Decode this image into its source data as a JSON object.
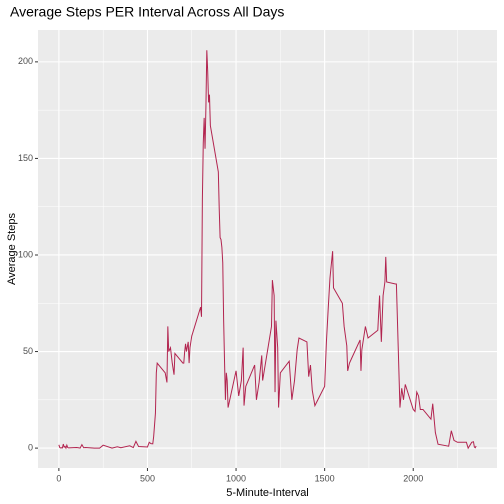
{
  "chart_data": {
    "type": "line",
    "title": "Average Steps PER Interval Across All Days",
    "x_label": "5-Minute-Interval",
    "y_label": "Average Steps",
    "x": [
      0,
      5,
      10,
      15,
      20,
      25,
      30,
      35,
      40,
      45,
      50,
      55,
      100,
      110,
      120,
      130,
      140,
      150,
      200,
      230,
      250,
      300,
      330,
      350,
      400,
      420,
      435,
      440,
      450,
      500,
      510,
      520,
      530,
      535,
      545,
      550,
      555,
      600,
      610,
      615,
      620,
      630,
      640,
      650,
      655,
      700,
      705,
      710,
      715,
      720,
      730,
      735,
      740,
      750,
      800,
      805,
      810,
      815,
      820,
      825,
      830,
      835,
      840,
      845,
      850,
      855,
      900,
      905,
      910,
      915,
      920,
      925,
      930,
      935,
      940,
      945,
      950,
      955,
      1000,
      1015,
      1030,
      1040,
      1045,
      1055,
      1105,
      1115,
      1130,
      1145,
      1150,
      1200,
      1205,
      1215,
      1220,
      1225,
      1235,
      1240,
      1250,
      1300,
      1315,
      1330,
      1345,
      1355,
      1400,
      1410,
      1420,
      1430,
      1445,
      1500,
      1510,
      1520,
      1530,
      1545,
      1550,
      1600,
      1610,
      1625,
      1630,
      1640,
      1650,
      1700,
      1705,
      1710,
      1720,
      1730,
      1745,
      1800,
      1810,
      1820,
      1830,
      1840,
      1845,
      1850,
      1900,
      1905,
      1915,
      1925,
      1935,
      1945,
      1955,
      2000,
      2010,
      2020,
      2030,
      2040,
      2055,
      2100,
      2110,
      2125,
      2140,
      2200,
      2215,
      2230,
      2250,
      2300,
      2310,
      2330,
      2340,
      2345,
      2350,
      2355
    ],
    "series": [
      {
        "name": "Average Steps",
        "color": "#b2244f",
        "values": [
          1.7,
          0.3,
          0.1,
          0.2,
          0.1,
          2.1,
          0.5,
          0.9,
          0,
          1.5,
          0.3,
          0.1,
          0.3,
          0.2,
          0,
          1.8,
          0.2,
          0.3,
          0,
          0,
          1.5,
          0,
          0.7,
          0.2,
          1.2,
          0.3,
          3.5,
          2.6,
          0.8,
          0.6,
          3,
          2.3,
          2.2,
          6,
          18,
          39,
          44,
          39,
          34,
          63,
          50,
          52,
          44,
          38,
          49,
          44,
          44,
          50,
          54,
          50,
          55,
          44,
          52,
          58,
          73,
          68,
          129,
          158,
          171,
          155,
          177,
          206,
          195,
          179,
          183,
          167,
          143,
          124,
          109,
          108,
          104,
          96,
          66,
          45,
          25,
          39,
          35,
          21,
          40,
          27,
          35,
          52,
          22,
          32,
          43,
          25,
          34,
          48,
          35,
          63,
          87,
          79,
          29,
          66,
          52,
          21,
          39,
          45,
          25,
          35,
          51,
          57,
          55,
          37,
          43,
          30,
          22,
          32,
          55,
          72,
          88,
          102,
          83,
          75,
          63,
          53,
          40,
          44,
          46,
          56,
          40,
          51,
          57,
          63,
          57,
          61,
          79,
          55,
          79,
          86,
          99,
          86,
          85,
          85,
          53,
          21,
          31,
          25,
          33,
          20,
          19,
          29,
          27,
          20,
          20,
          15,
          23,
          8,
          2,
          1,
          9,
          4,
          3,
          3,
          0,
          3,
          3.3,
          0.6,
          0.2,
          1.1
        ]
      }
    ],
    "xlim": [
      -117.75,
      2472.75
    ],
    "ylim": [
      -10.3,
      216.5
    ],
    "xticks": [
      0,
      500,
      1000,
      1500,
      2000
    ],
    "yticks": [
      0,
      50,
      100,
      150,
      200
    ],
    "x_minor_breaks": [
      250,
      750,
      1250,
      1750,
      2250
    ],
    "y_minor_breaks": [
      25,
      75,
      125,
      175
    ],
    "grid": true
  }
}
